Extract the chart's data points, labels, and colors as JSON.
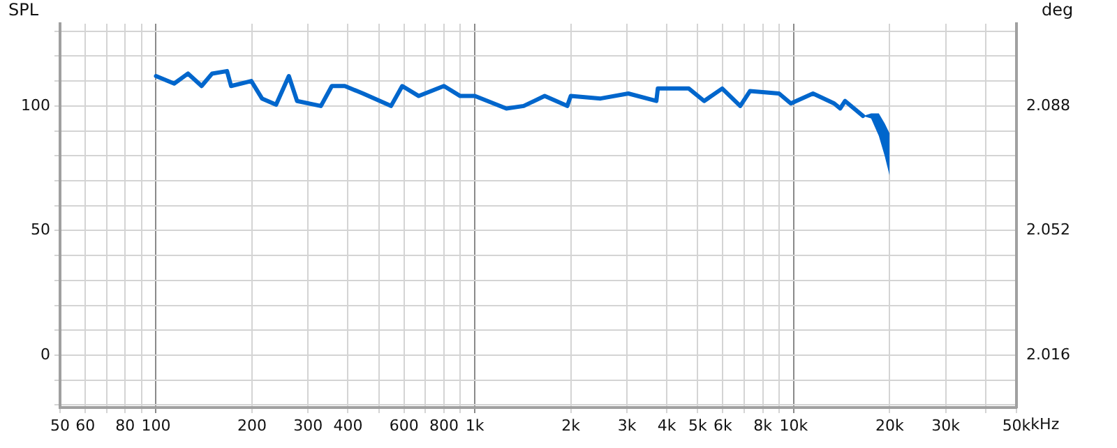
{
  "chart_data": {
    "type": "line",
    "ylabel": "SPL",
    "y2label": "deg",
    "log": "x",
    "grid": true,
    "legend": false,
    "marker": "none",
    "line_style": "solid",
    "xlim": [
      50,
      50000
    ],
    "xticks": [
      50,
      60,
      {
        "value": 70,
        "label": null
      },
      80,
      {
        "value": 90,
        "label": null
      },
      100,
      200,
      300,
      400,
      {
        "value": 500,
        "label": null
      },
      600,
      {
        "value": 700,
        "label": null
      },
      800,
      {
        "value": 900,
        "label": null
      },
      {
        "value": 1000,
        "label": "1k"
      },
      {
        "value": 2000,
        "label": "2k"
      },
      {
        "value": 3000,
        "label": "3k"
      },
      {
        "value": 4000,
        "label": "4k"
      },
      {
        "value": 5000,
        "label": "5k"
      },
      {
        "value": 6000,
        "label": "6k"
      },
      {
        "value": 7000,
        "label": null
      },
      {
        "value": 8000,
        "label": "8k"
      },
      {
        "value": 9000,
        "label": null
      },
      {
        "value": 10000,
        "label": "10k"
      },
      {
        "value": 20000,
        "label": "20k"
      },
      {
        "value": 30000,
        "label": "30k"
      },
      {
        "value": 40000,
        "label": null
      },
      {
        "value": 50000,
        "label": "50k"
      }
    ],
    "xlabel": "kHz",
    "ylim": [
      -21,
      133
    ],
    "yticks": [
      {
        "value": -20,
        "label": null
      },
      {
        "value": -10,
        "label": null
      },
      0,
      {
        "value": 10,
        "label": null
      },
      {
        "value": 20,
        "label": null
      },
      {
        "value": 30,
        "label": null
      },
      {
        "value": 40,
        "label": null
      },
      50,
      {
        "value": 60,
        "label": null
      },
      {
        "value": 70,
        "label": null
      },
      {
        "value": 80,
        "label": null
      },
      {
        "value": 90,
        "label": null
      },
      100,
      {
        "value": 110,
        "label": null
      },
      {
        "value": 120,
        "label": null
      },
      {
        "value": 130,
        "label": null
      }
    ],
    "y2lim": [
      2.0009,
      2.1118
    ],
    "y2ticks": [
      2.016,
      2.052,
      2.088
    ],
    "x": [
      100,
      114,
      126,
      139,
      150,
      167,
      172,
      199,
      215,
      238,
      261,
      277,
      329,
      356,
      391,
      446,
      546,
      592,
      667,
      800,
      900,
      1000,
      1256,
      1423,
      1656,
      1950,
      2000,
      2480,
      3030,
      3710,
      3750,
      4690,
      5240,
      5970,
      6800,
      7300,
      9000,
      9800,
      11500,
      13400,
      14000,
      14500,
      16500,
      17500,
      18500,
      19300,
      20000
    ],
    "series": [
      {
        "color": "#0066cc",
        "values": [
          112,
          109,
          113,
          108,
          113,
          114,
          108,
          110,
          103,
          100.5,
          112,
          102,
          100,
          108,
          108,
          105,
          100,
          108,
          104,
          108,
          104,
          104,
          99,
          100,
          104,
          100,
          104,
          103,
          105,
          102,
          107,
          107,
          102,
          107,
          100,
          106,
          105,
          101,
          105,
          101,
          99,
          102,
          96,
          null,
          null,
          null,
          null
        ],
        "lower": [
          null,
          null,
          null,
          null,
          null,
          null,
          null,
          null,
          null,
          null,
          null,
          null,
          null,
          null,
          null,
          null,
          null,
          null,
          null,
          null,
          null,
          null,
          null,
          null,
          null,
          null,
          null,
          null,
          null,
          null,
          null,
          null,
          null,
          null,
          null,
          null,
          null,
          null,
          null,
          null,
          null,
          null,
          96,
          95,
          88,
          80,
          72
        ],
        "upper": [
          null,
          null,
          null,
          null,
          null,
          null,
          null,
          null,
          null,
          null,
          null,
          null,
          null,
          null,
          null,
          null,
          null,
          null,
          null,
          null,
          null,
          null,
          null,
          null,
          null,
          null,
          null,
          null,
          null,
          null,
          null,
          null,
          null,
          null,
          null,
          null,
          null,
          null,
          null,
          null,
          null,
          null,
          96,
          97,
          97,
          93,
          89
        ]
      }
    ]
  }
}
